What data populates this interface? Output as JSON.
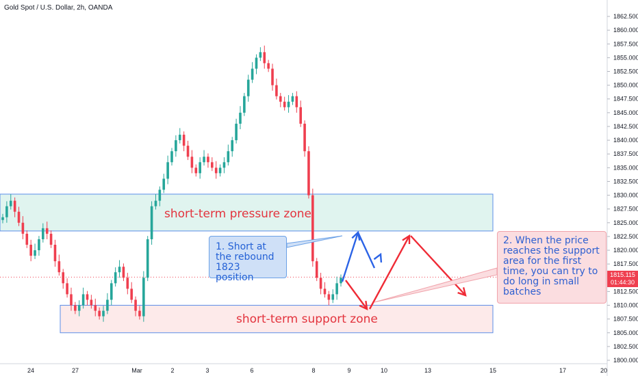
{
  "header": {
    "title": "Gold Spot / U.S. Dollar, 2h, OANDA"
  },
  "current_price": {
    "value": "1815.115",
    "countdown": "01:44:30",
    "color": "#ef3f4f"
  },
  "colors": {
    "up": "#26a69a",
    "down": "#ef3f4f",
    "pressure_zone_fill": "#e0f4ef",
    "support_zone_fill": "#fdeaea",
    "zone_border": "#5a8de8",
    "arrow_red": "#ef2b36",
    "arrow_blue": "#2b63e6"
  },
  "annotations": {
    "pressure_zone_label": "short-term pressure zone",
    "support_zone_label": "short-term support zone",
    "note1": "1. Short at the rebound 1823 position",
    "note2": "2. When the price reaches the support area for the first time, you can try to do long in small batches"
  },
  "chart_data": {
    "type": "candlestick",
    "title": "Gold Spot / U.S. Dollar, 2h, OANDA",
    "y_axis": {
      "min": 1800,
      "max": 1863,
      "ticks": [
        "1862.500",
        "1860.000",
        "1857.500",
        "1855.000",
        "1852.500",
        "1850.000",
        "1847.500",
        "1845.000",
        "1842.500",
        "1840.000",
        "1837.500",
        "1835.000",
        "1832.500",
        "1830.000",
        "1827.500",
        "1825.000",
        "1822.500",
        "1820.000",
        "1817.500",
        "1815.000",
        "1812.500",
        "1810.000",
        "1807.500",
        "1805.000",
        "1802.500",
        "1800.000"
      ]
    },
    "x_axis": {
      "ticks": [
        "24",
        "27",
        "Mar",
        "2",
        "3",
        "6",
        "8",
        "9",
        "10",
        "13",
        "15",
        "17",
        "20"
      ]
    },
    "series_close": [
      1826,
      1828,
      1829,
      1827,
      1825,
      1823,
      1821,
      1819,
      1820,
      1822,
      1824,
      1823,
      1821,
      1818,
      1816,
      1814,
      1812,
      1810,
      1809,
      1810,
      1812,
      1811,
      1810,
      1809,
      1808,
      1809,
      1811,
      1814,
      1816,
      1817,
      1815,
      1813,
      1811,
      1809,
      1808,
      1815,
      1822,
      1828,
      1829,
      1831,
      1833,
      1836,
      1838,
      1840,
      1841,
      1839,
      1837,
      1835,
      1834,
      1836,
      1837,
      1836,
      1835,
      1834,
      1835,
      1836,
      1838,
      1840,
      1843,
      1845,
      1848,
      1851,
      1853,
      1855,
      1856,
      1854,
      1853,
      1850,
      1848,
      1847,
      1846,
      1847,
      1848,
      1846,
      1843,
      1838,
      1830,
      1818,
      1815,
      1813,
      1812,
      1811,
      1812,
      1814,
      1815
    ],
    "zones": [
      {
        "name": "short-term pressure zone",
        "upper": 1830.2,
        "lower": 1823.5
      },
      {
        "name": "short-term support zone",
        "upper": 1810.0,
        "lower": 1805.0
      }
    ],
    "current_price": 1815.115
  }
}
